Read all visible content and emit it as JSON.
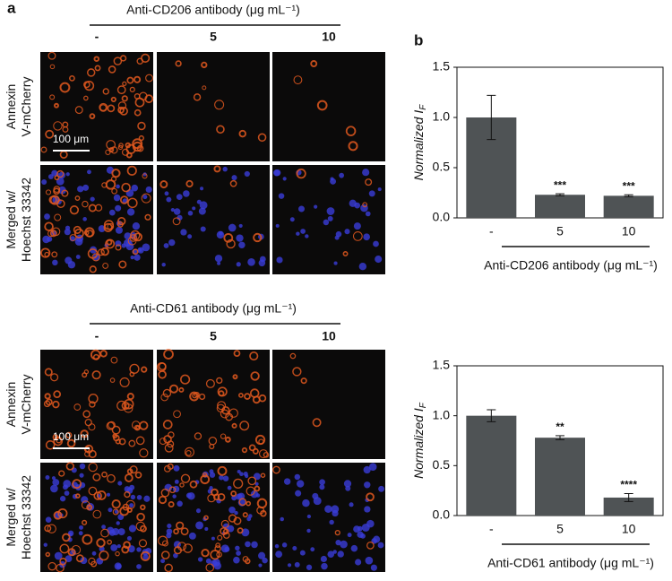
{
  "panel_a": {
    "label": "a",
    "row_labels": [
      [
        "Annexin",
        "V-mCherry"
      ],
      [
        "Merged w/",
        "Hoechst 33342"
      ]
    ],
    "scale_bar": "100 μm",
    "blocks": [
      {
        "title": "Anti-CD206 antibody (μg mL⁻¹)",
        "columns": [
          "-",
          "5",
          "10"
        ]
      },
      {
        "title": "Anti-CD61 antibody (μg mL⁻¹)",
        "columns": [
          "-",
          "5",
          "10"
        ]
      }
    ]
  },
  "panel_b": {
    "label": "b"
  },
  "chart_data": [
    {
      "type": "bar",
      "y_label": "Normalized I",
      "y_label_subscript": "F",
      "x_label": "Anti-CD206 antibody (μg mL⁻¹)",
      "categories": [
        "-",
        "5",
        "10"
      ],
      "values": [
        1.0,
        0.23,
        0.22
      ],
      "errors": [
        0.22,
        0.01,
        0.01
      ],
      "annotations": [
        null,
        "***",
        "***"
      ],
      "color": "#4f5355",
      "ylim": [
        0,
        1.5
      ],
      "yticks": [
        {
          "value": 0,
          "label": "0.0"
        },
        0.5,
        {
          "value": 1,
          "label": "1.0"
        },
        1.5
      ]
    },
    {
      "type": "bar",
      "y_label": "Normalized I",
      "y_label_subscript": "F",
      "x_label": "Anti-CD61 antibody (μg mL⁻¹)",
      "categories": [
        "-",
        "5",
        "10"
      ],
      "values": [
        1.0,
        0.78,
        0.18
      ],
      "errors": [
        0.06,
        0.02,
        0.04
      ],
      "annotations": [
        null,
        "**",
        "****"
      ],
      "color": "#4f5355",
      "ylim": [
        0,
        1.5
      ],
      "yticks": [
        {
          "value": 0,
          "label": "0.0"
        },
        0.5,
        {
          "value": 1,
          "label": "1.0"
        },
        1.5
      ]
    }
  ]
}
